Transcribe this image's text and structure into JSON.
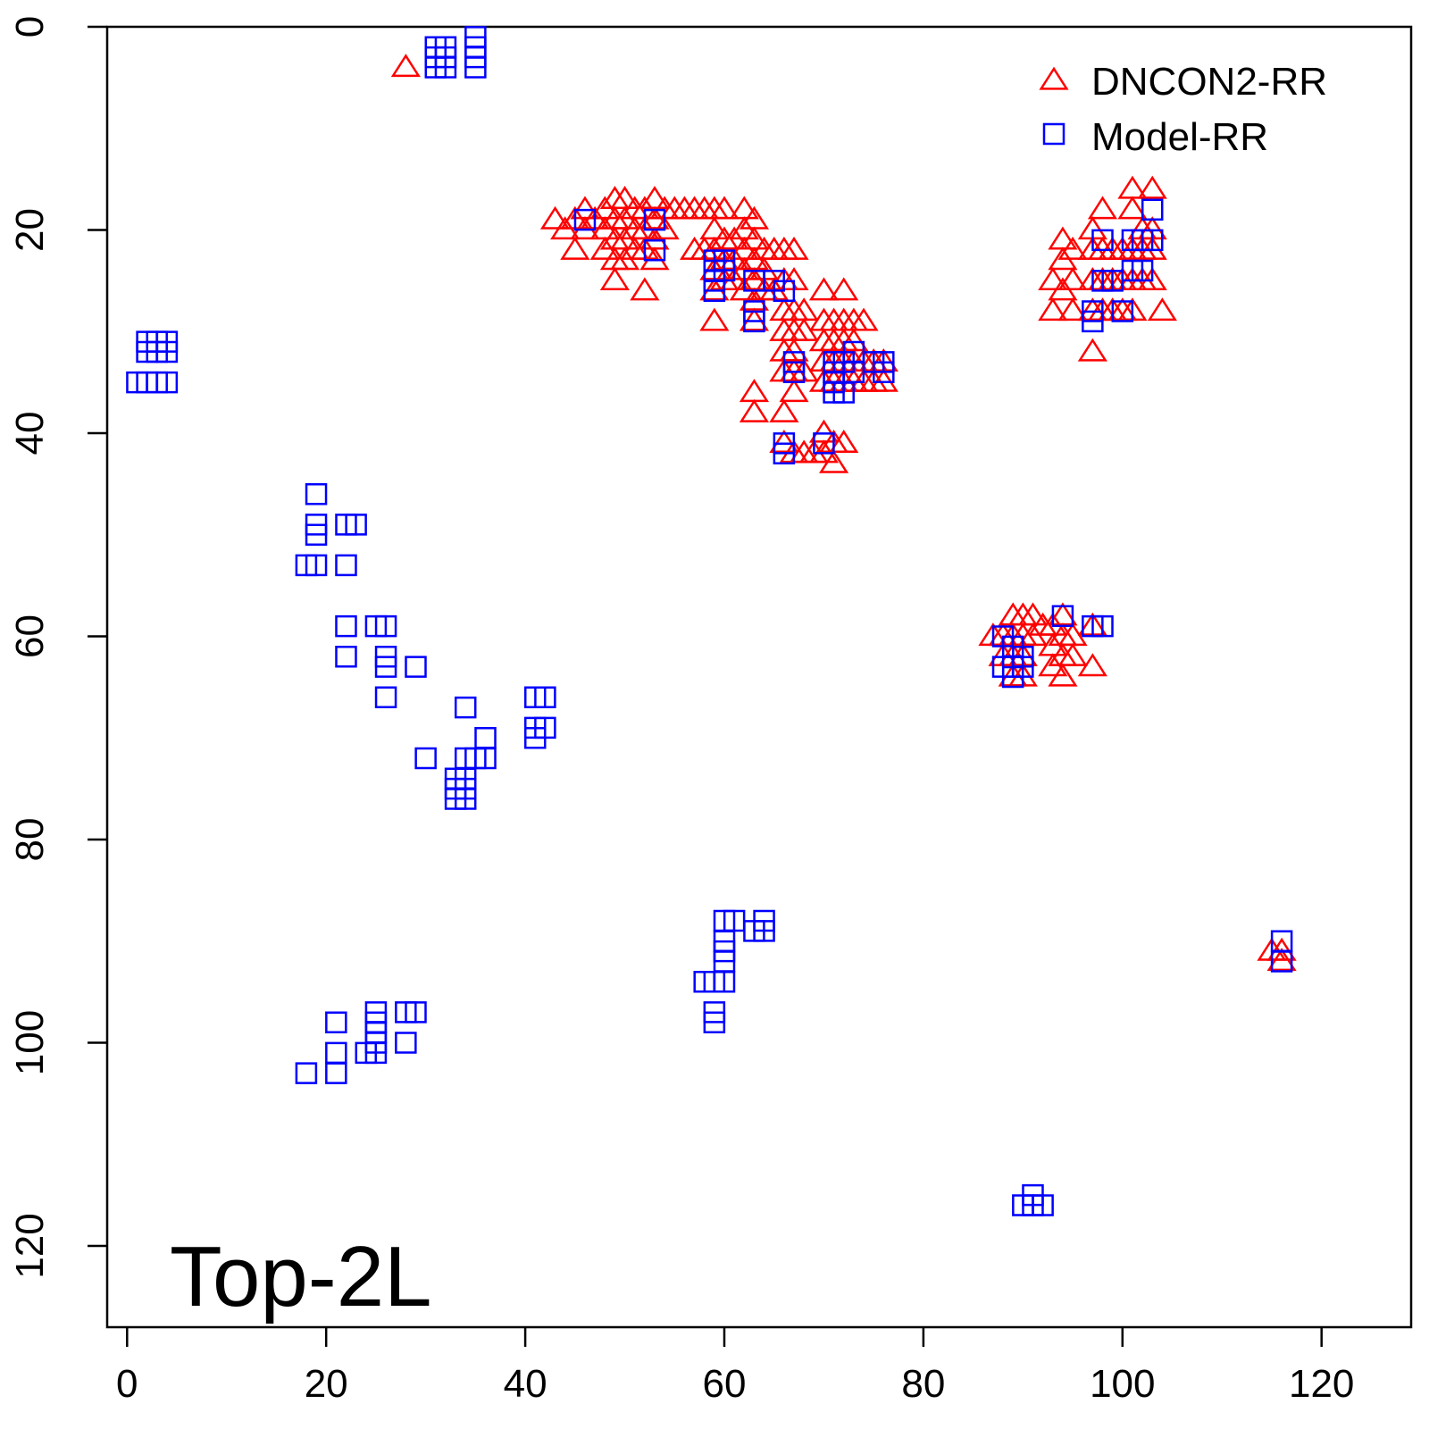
{
  "chart_data": {
    "type": "scatter",
    "title": "",
    "xlabel": "",
    "ylabel": "",
    "annotation": "Top-2L",
    "xlim": [
      -2,
      129
    ],
    "ylim": [
      0,
      128
    ],
    "y_reversed": true,
    "x_ticks": [
      0,
      20,
      40,
      60,
      80,
      100,
      120
    ],
    "y_ticks": [
      0,
      20,
      40,
      60,
      80,
      100,
      120
    ],
    "x_tick_labels": [
      "0",
      "20",
      "40",
      "60",
      "80",
      "100",
      "120"
    ],
    "y_tick_labels": [
      "0",
      "20",
      "40",
      "60",
      "80",
      "100",
      "120"
    ],
    "legend": {
      "position": "top-right"
    },
    "series": [
      {
        "name": "DNCON2-RR",
        "marker": "triangle-open",
        "color": "#ff0000",
        "points": [
          [
            28,
            4
          ],
          [
            43,
            19
          ],
          [
            44,
            20
          ],
          [
            45,
            19
          ],
          [
            46,
            18
          ],
          [
            46,
            20
          ],
          [
            47,
            19
          ],
          [
            45,
            22
          ],
          [
            48,
            18
          ],
          [
            48,
            20
          ],
          [
            48,
            22
          ],
          [
            49,
            17
          ],
          [
            49,
            19
          ],
          [
            49,
            21
          ],
          [
            49,
            23
          ],
          [
            49,
            25
          ],
          [
            50,
            17
          ],
          [
            50,
            19
          ],
          [
            50,
            21
          ],
          [
            50,
            23
          ],
          [
            51,
            18
          ],
          [
            51,
            20
          ],
          [
            51,
            22
          ],
          [
            52,
            18
          ],
          [
            52,
            20
          ],
          [
            52,
            22
          ],
          [
            52,
            26
          ],
          [
            53,
            17
          ],
          [
            53,
            19
          ],
          [
            53,
            21
          ],
          [
            53,
            23
          ],
          [
            54,
            18
          ],
          [
            54,
            20
          ],
          [
            55,
            18
          ],
          [
            56,
            18
          ],
          [
            57,
            18
          ],
          [
            58,
            18
          ],
          [
            59,
            18
          ],
          [
            60,
            18
          ],
          [
            57,
            22
          ],
          [
            58,
            22
          ],
          [
            59,
            20
          ],
          [
            59,
            22
          ],
          [
            59,
            24
          ],
          [
            59,
            26
          ],
          [
            59,
            29
          ],
          [
            60,
            21
          ],
          [
            60,
            23
          ],
          [
            60,
            25
          ],
          [
            61,
            21
          ],
          [
            61,
            23
          ],
          [
            61,
            25
          ],
          [
            62,
            18
          ],
          [
            62,
            20
          ],
          [
            62,
            22
          ],
          [
            62,
            24
          ],
          [
            62,
            26
          ],
          [
            63,
            19
          ],
          [
            63,
            21
          ],
          [
            63,
            23
          ],
          [
            63,
            25
          ],
          [
            63,
            27
          ],
          [
            63,
            29
          ],
          [
            64,
            22
          ],
          [
            64,
            24
          ],
          [
            64,
            26
          ],
          [
            65,
            22
          ],
          [
            65,
            26
          ],
          [
            66,
            22
          ],
          [
            66,
            25
          ],
          [
            66,
            28
          ],
          [
            66,
            30
          ],
          [
            67,
            22
          ],
          [
            67,
            25
          ],
          [
            67,
            28
          ],
          [
            67,
            30
          ],
          [
            68,
            28
          ],
          [
            68,
            30
          ],
          [
            66,
            32
          ],
          [
            66,
            34
          ],
          [
            67,
            32
          ],
          [
            67,
            34
          ],
          [
            67,
            36
          ],
          [
            68,
            34
          ],
          [
            66,
            38
          ],
          [
            63,
            36
          ],
          [
            63,
            38
          ],
          [
            70,
            26
          ],
          [
            72,
            26
          ],
          [
            70,
            29
          ],
          [
            70,
            31
          ],
          [
            71,
            29
          ],
          [
            71,
            31
          ],
          [
            72,
            29
          ],
          [
            72,
            31
          ],
          [
            73,
            29
          ],
          [
            73,
            31
          ],
          [
            74,
            29
          ],
          [
            70,
            33
          ],
          [
            70,
            35
          ],
          [
            71,
            33
          ],
          [
            71,
            35
          ],
          [
            72,
            33
          ],
          [
            72,
            35
          ],
          [
            73,
            33
          ],
          [
            73,
            35
          ],
          [
            74,
            33
          ],
          [
            74,
            35
          ],
          [
            75,
            33
          ],
          [
            75,
            35
          ],
          [
            76,
            33
          ],
          [
            76,
            35
          ],
          [
            66,
            41
          ],
          [
            67,
            42
          ],
          [
            68,
            42
          ],
          [
            69,
            42
          ],
          [
            70,
            40
          ],
          [
            70,
            42
          ],
          [
            71,
            41
          ],
          [
            71,
            43
          ],
          [
            72,
            41
          ],
          [
            93,
            25
          ],
          [
            94,
            21
          ],
          [
            94,
            23
          ],
          [
            94,
            26
          ],
          [
            95,
            22
          ],
          [
            95,
            25
          ],
          [
            93,
            28
          ],
          [
            95,
            28
          ],
          [
            97,
            20
          ],
          [
            97,
            22
          ],
          [
            97,
            25
          ],
          [
            97,
            28
          ],
          [
            97,
            32
          ],
          [
            98,
            18
          ],
          [
            98,
            22
          ],
          [
            98,
            25
          ],
          [
            98,
            28
          ],
          [
            99,
            22
          ],
          [
            99,
            25
          ],
          [
            99,
            28
          ],
          [
            100,
            22
          ],
          [
            100,
            25
          ],
          [
            100,
            28
          ],
          [
            101,
            16
          ],
          [
            101,
            18
          ],
          [
            101,
            22
          ],
          [
            101,
            25
          ],
          [
            101,
            28
          ],
          [
            102,
            20
          ],
          [
            102,
            22
          ],
          [
            102,
            25
          ],
          [
            103,
            16
          ],
          [
            103,
            20
          ],
          [
            103,
            22
          ],
          [
            103,
            25
          ],
          [
            104,
            28
          ],
          [
            87,
            60
          ],
          [
            88,
            60
          ],
          [
            88,
            62
          ],
          [
            89,
            58
          ],
          [
            89,
            60
          ],
          [
            89,
            62
          ],
          [
            89,
            64
          ],
          [
            90,
            58
          ],
          [
            90,
            60
          ],
          [
            90,
            62
          ],
          [
            90,
            64
          ],
          [
            91,
            58
          ],
          [
            91,
            60
          ],
          [
            92,
            59
          ],
          [
            93,
            59
          ],
          [
            93,
            61
          ],
          [
            93,
            63
          ],
          [
            94,
            58
          ],
          [
            94,
            60
          ],
          [
            94,
            62
          ],
          [
            94,
            64
          ],
          [
            95,
            60
          ],
          [
            95,
            62
          ],
          [
            97,
            59
          ],
          [
            97,
            63
          ],
          [
            115,
            91
          ],
          [
            116,
            91
          ],
          [
            116,
            92
          ]
        ]
      },
      {
        "name": "Model-RR",
        "marker": "square-open",
        "color": "#0000ff",
        "points": [
          [
            31,
            2
          ],
          [
            31,
            3
          ],
          [
            31,
            4
          ],
          [
            32,
            2
          ],
          [
            32,
            3
          ],
          [
            32,
            4
          ],
          [
            35,
            1
          ],
          [
            35,
            2
          ],
          [
            35,
            3
          ],
          [
            35,
            4
          ],
          [
            2,
            31
          ],
          [
            3,
            31
          ],
          [
            4,
            31
          ],
          [
            2,
            32
          ],
          [
            3,
            32
          ],
          [
            4,
            32
          ],
          [
            1,
            35
          ],
          [
            2,
            35
          ],
          [
            3,
            35
          ],
          [
            4,
            35
          ],
          [
            19,
            46
          ],
          [
            19,
            49
          ],
          [
            19,
            50
          ],
          [
            19,
            53
          ],
          [
            18,
            53
          ],
          [
            22,
            49
          ],
          [
            23,
            49
          ],
          [
            22,
            53
          ],
          [
            22,
            59
          ],
          [
            22,
            62
          ],
          [
            25,
            59
          ],
          [
            26,
            59
          ],
          [
            26,
            62
          ],
          [
            26,
            63
          ],
          [
            26,
            66
          ],
          [
            29,
            63
          ],
          [
            34,
            67
          ],
          [
            30,
            72
          ],
          [
            34,
            72
          ],
          [
            35,
            72
          ],
          [
            36,
            70
          ],
          [
            36,
            72
          ],
          [
            33,
            74
          ],
          [
            33,
            75
          ],
          [
            33,
            76
          ],
          [
            34,
            74
          ],
          [
            34,
            75
          ],
          [
            34,
            76
          ],
          [
            41,
            66
          ],
          [
            42,
            66
          ],
          [
            41,
            69
          ],
          [
            42,
            69
          ],
          [
            41,
            70
          ],
          [
            21,
            98
          ],
          [
            21,
            101
          ],
          [
            21,
            103
          ],
          [
            18,
            103
          ],
          [
            24,
            101
          ],
          [
            25,
            97
          ],
          [
            25,
            98
          ],
          [
            25,
            99
          ],
          [
            25,
            100
          ],
          [
            25,
            101
          ],
          [
            28,
            97
          ],
          [
            29,
            97
          ],
          [
            28,
            100
          ],
          [
            46,
            19
          ],
          [
            53,
            19
          ],
          [
            53,
            22
          ],
          [
            59,
            23
          ],
          [
            59,
            24
          ],
          [
            59,
            25
          ],
          [
            59,
            26
          ],
          [
            60,
            23
          ],
          [
            60,
            24
          ],
          [
            63,
            25
          ],
          [
            63,
            28
          ],
          [
            63,
            29
          ],
          [
            65,
            25
          ],
          [
            66,
            26
          ],
          [
            67,
            33
          ],
          [
            67,
            34
          ],
          [
            71,
            33
          ],
          [
            71,
            34
          ],
          [
            71,
            35
          ],
          [
            71,
            36
          ],
          [
            72,
            33
          ],
          [
            72,
            36
          ],
          [
            73,
            32
          ],
          [
            73,
            34
          ],
          [
            75,
            33
          ],
          [
            76,
            33
          ],
          [
            76,
            34
          ],
          [
            66,
            41
          ],
          [
            66,
            42
          ],
          [
            70,
            41
          ],
          [
            97,
            28
          ],
          [
            97,
            29
          ],
          [
            98,
            21
          ],
          [
            98,
            25
          ],
          [
            99,
            25
          ],
          [
            100,
            28
          ],
          [
            101,
            21
          ],
          [
            101,
            24
          ],
          [
            102,
            21
          ],
          [
            102,
            24
          ],
          [
            103,
            18
          ],
          [
            103,
            21
          ],
          [
            88,
            60
          ],
          [
            88,
            63
          ],
          [
            89,
            61
          ],
          [
            89,
            63
          ],
          [
            89,
            64
          ],
          [
            90,
            62
          ],
          [
            90,
            63
          ],
          [
            94,
            58
          ],
          [
            97,
            59
          ],
          [
            98,
            59
          ],
          [
            58,
            94
          ],
          [
            59,
            94
          ],
          [
            60,
            94
          ],
          [
            59,
            97
          ],
          [
            59,
            98
          ],
          [
            60,
            88
          ],
          [
            60,
            90
          ],
          [
            60,
            91
          ],
          [
            60,
            92
          ],
          [
            61,
            88
          ],
          [
            63,
            89
          ],
          [
            64,
            88
          ],
          [
            64,
            89
          ],
          [
            116,
            90
          ],
          [
            116,
            92
          ],
          [
            90,
            116
          ],
          [
            91,
            115
          ],
          [
            91,
            116
          ],
          [
            92,
            116
          ]
        ]
      }
    ]
  }
}
